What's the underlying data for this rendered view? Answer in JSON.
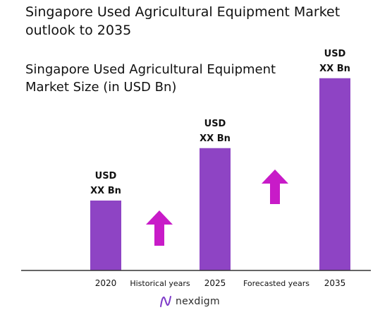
{
  "title": "Singapore Used Agricultural Equipment Market outlook to 2035",
  "chart_data": {
    "type": "bar",
    "title": "Singapore Used Agricultural Equipment Market Size (in USD Bn)",
    "categories": [
      "2020",
      "2025",
      "2035"
    ],
    "values": [
      1,
      1.75,
      2.75
    ],
    "data_labels": [
      [
        "USD",
        "XX Bn"
      ],
      [
        "USD",
        "XX Bn"
      ],
      [
        "USD",
        "XX Bn"
      ]
    ],
    "period_labels": [
      "Historical years",
      "Forecasted years"
    ],
    "ylim": [
      0,
      3
    ],
    "grid": false,
    "legend": "none",
    "bar_color": "#8E44C4",
    "arrow_color": "#C81BC8"
  },
  "brand": {
    "name": "nexdigm",
    "icon": "nexdigm-logo-icon",
    "icon_color": "#7E3BC9"
  }
}
